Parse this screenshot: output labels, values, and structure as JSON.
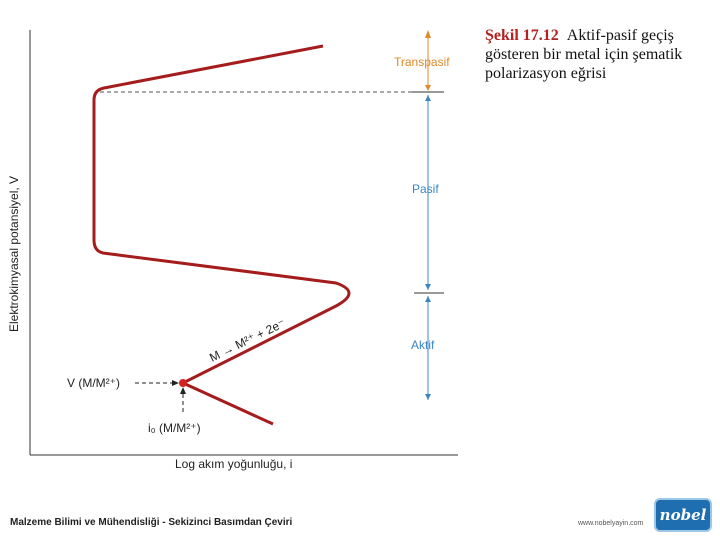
{
  "caption": {
    "number": "Şekil 17.12",
    "text": "Aktif-pasif geçiş gösteren bir metal için şematik polarizasyon eğrisi"
  },
  "axes": {
    "ylabel": "Elektrokimyasal potansiyel, V",
    "xlabel": "Log akım yoğunluğu, i"
  },
  "regions": {
    "transpasif": "Transpasif",
    "pasif": "Pasif",
    "aktif": "Aktif"
  },
  "annotations": {
    "reaction": "M → M²⁺ + 2e⁻",
    "potential_label": "V (M/M²⁺)",
    "current_label": "i₀ (M/M²⁺)"
  },
  "colors": {
    "curve": "#a51c1c",
    "region_label": "#e0892a",
    "region_arrow": "#3b86c4"
  },
  "footer": {
    "book": "Malzeme Bilimi ve Mühendisliği - Sekizinci Basımdan Çeviri",
    "url": "www.nobelyayin.com",
    "logo": "nobel"
  }
}
